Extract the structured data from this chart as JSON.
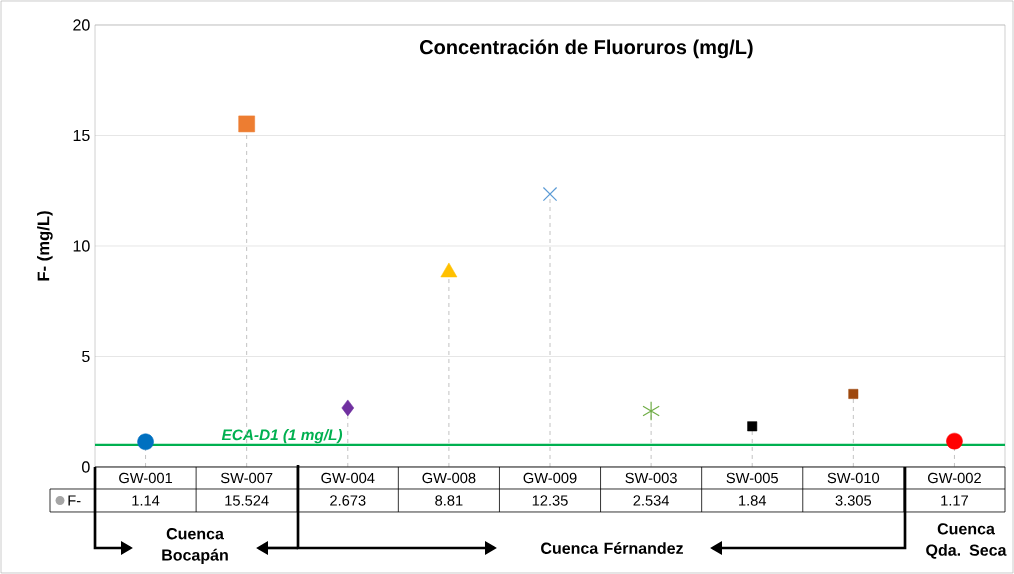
{
  "chart_data": {
    "type": "lollipop",
    "title": "Concentración de Fluoruros (mg/L)",
    "ylabel": "F-  (mg/L)",
    "categories": [
      "GW-001",
      "SW-007",
      "GW-004",
      "GW-008",
      "GW-009",
      "SW-003",
      "SW-005",
      "SW-010",
      "GW-002"
    ],
    "series": [
      {
        "name": "F-",
        "color": "#a5a5a5",
        "values": [
          1.14,
          15.524,
          2.673,
          8.81,
          12.35,
          2.534,
          1.84,
          3.305,
          1.17
        ],
        "colors": [
          "#0070c0",
          "#ed7d31",
          "#7030a0",
          "#ffc000",
          "#5b9bd5",
          "#70ad47",
          "#000000",
          "#9e480e",
          "#ff0000"
        ]
      }
    ],
    "ylim": [
      0,
      20
    ],
    "yticks": [
      0,
      5,
      10,
      15,
      20
    ],
    "grid": "y",
    "line_style": "dashed",
    "data_labels": true,
    "legend": "bottom left",
    "ref_lines": [
      {
        "axis": "y",
        "value": 1,
        "label": "ECA-D1 (1 mg/L)",
        "color": "#00b050"
      }
    ],
    "annotations": [
      "Cuenca Bocapán",
      "Cuenca Férnandez",
      "Cuenca Qda. Seca"
    ]
  }
}
